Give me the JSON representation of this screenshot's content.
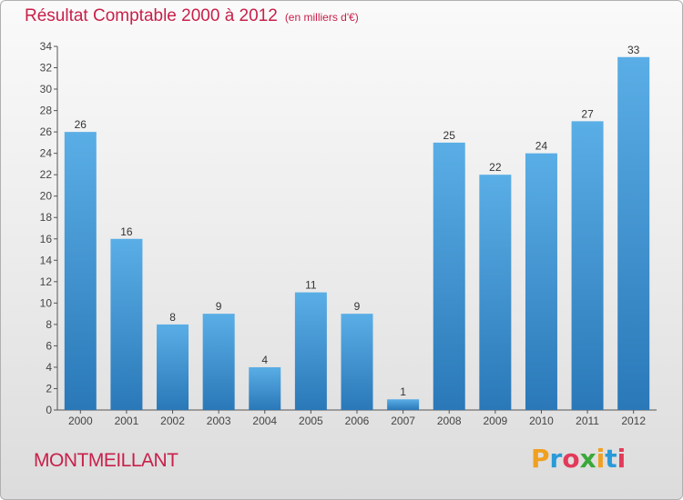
{
  "chart_data": {
    "type": "bar",
    "title": "Résultat Comptable 2000 à 2012",
    "subtitle": "(en milliers d'€)",
    "categories": [
      "2000",
      "2001",
      "2002",
      "2003",
      "2004",
      "2005",
      "2006",
      "2007",
      "2008",
      "2009",
      "2010",
      "2011",
      "2012"
    ],
    "values": [
      26,
      16,
      8,
      9,
      4,
      11,
      9,
      1,
      25,
      22,
      24,
      27,
      33
    ],
    "ylim": [
      0,
      34
    ],
    "yticks": [
      0,
      2,
      4,
      6,
      8,
      10,
      12,
      14,
      16,
      18,
      20,
      22,
      24,
      26,
      28,
      30,
      32,
      34
    ],
    "xlabel": "",
    "ylabel": "",
    "grid": false,
    "colors": {
      "bar_light": "#5aaee6",
      "bar_dark": "#2a78b8",
      "title": "#c8204a"
    }
  },
  "commune": "MONTMEILLANT",
  "logo": {
    "letters": [
      {
        "char": "P",
        "color": "#f0a020"
      },
      {
        "char": "r",
        "color": "#2a9ad8"
      },
      {
        "char": "o",
        "color": "#e23a5a"
      },
      {
        "char": "x",
        "color": "#3aa83a"
      },
      {
        "char": "i",
        "color": "#f0a020"
      },
      {
        "char": "t",
        "color": "#2a9ad8"
      },
      {
        "char": "i",
        "color": "#e23a5a"
      }
    ]
  }
}
